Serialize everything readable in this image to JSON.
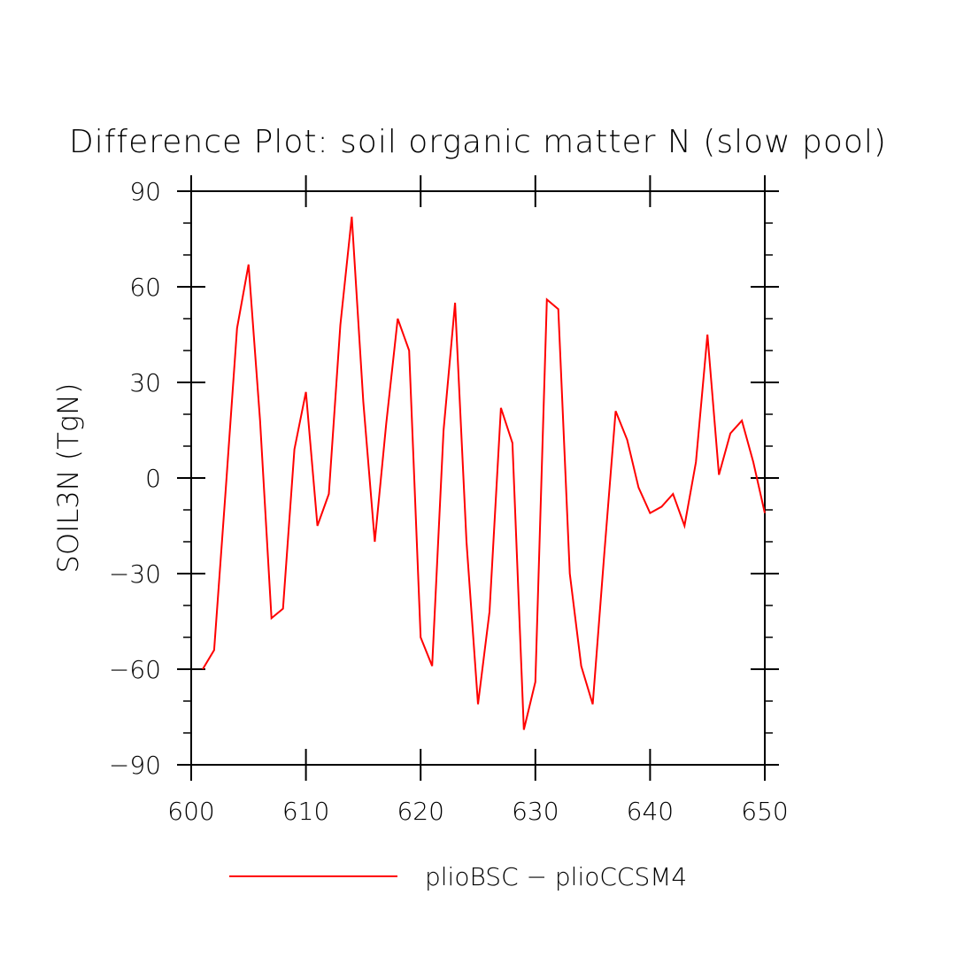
{
  "chart_data": {
    "type": "line",
    "title": "Difference Plot: soil organic matter N (slow pool)",
    "ylabel": "SOIL3N   (TgN)",
    "xlabel": "",
    "xlim": [
      600,
      650
    ],
    "ylim": [
      -90,
      90
    ],
    "xticks": [
      600,
      610,
      620,
      630,
      640,
      650
    ],
    "yticks": [
      90,
      60,
      30,
      0,
      -30,
      -60,
      -90
    ],
    "ytick_labels": [
      "90",
      "60",
      "30",
      "0",
      "−30",
      "−60",
      "−90"
    ],
    "grid": false,
    "legend_position": "bottom-center",
    "series": [
      {
        "name": "plioBSC − plioCCSM4",
        "color": "#ff0000",
        "x": [
          601,
          602,
          603,
          604,
          605,
          606,
          607,
          608,
          609,
          610,
          611,
          612,
          613,
          614,
          615,
          616,
          617,
          618,
          619,
          620,
          621,
          622,
          623,
          624,
          625,
          626,
          627,
          628,
          629,
          630,
          631,
          632,
          633,
          634,
          635,
          636,
          637,
          638,
          639,
          640,
          641,
          642,
          643,
          644,
          645,
          646,
          647,
          648,
          649,
          650
        ],
        "y": [
          -60,
          -54,
          -4,
          47,
          67,
          18,
          -44,
          -41,
          9,
          27,
          -15,
          -5,
          48,
          82,
          24,
          -20,
          17,
          50,
          40,
          -50,
          -59,
          15,
          55,
          -20,
          -71,
          -42,
          22,
          11,
          -79,
          -64,
          56,
          53,
          -30,
          -59,
          -71,
          -24,
          21,
          12,
          -3,
          -11,
          -9,
          -5,
          -15,
          5,
          45,
          1,
          14,
          18,
          5,
          -11
        ]
      }
    ]
  }
}
